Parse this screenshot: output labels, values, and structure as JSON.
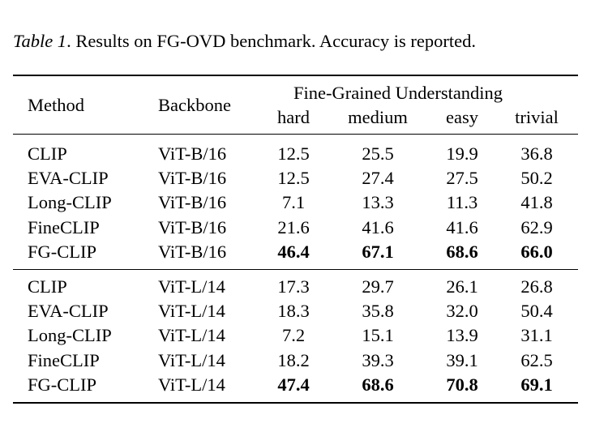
{
  "caption": {
    "label": "Table 1",
    "text": ". Results on FG-OVD benchmark. Accuracy is reported."
  },
  "table": {
    "headers": {
      "method": "Method",
      "backbone": "Backbone",
      "group": "Fine-Grained Understanding",
      "columns": [
        "hard",
        "medium",
        "easy",
        "trivial"
      ]
    },
    "groups": [
      {
        "rows": [
          {
            "method": "CLIP",
            "backbone": "ViT-B/16",
            "values": [
              "12.5",
              "25.5",
              "19.9",
              "36.8"
            ],
            "bold": false
          },
          {
            "method": "EVA-CLIP",
            "backbone": "ViT-B/16",
            "values": [
              "12.5",
              "27.4",
              "27.5",
              "50.2"
            ],
            "bold": false
          },
          {
            "method": "Long-CLIP",
            "backbone": "ViT-B/16",
            "values": [
              "7.1",
              "13.3",
              "11.3",
              "41.8"
            ],
            "bold": false
          },
          {
            "method": "FineCLIP",
            "backbone": "ViT-B/16",
            "values": [
              "21.6",
              "41.6",
              "41.6",
              "62.9"
            ],
            "bold": false
          },
          {
            "method": "FG-CLIP",
            "backbone": "ViT-B/16",
            "values": [
              "46.4",
              "67.1",
              "68.6",
              "66.0"
            ],
            "bold": true
          }
        ]
      },
      {
        "rows": [
          {
            "method": "CLIP",
            "backbone": "ViT-L/14",
            "values": [
              "17.3",
              "29.7",
              "26.1",
              "26.8"
            ],
            "bold": false
          },
          {
            "method": "EVA-CLIP",
            "backbone": "ViT-L/14",
            "values": [
              "18.3",
              "35.8",
              "32.0",
              "50.4"
            ],
            "bold": false
          },
          {
            "method": "Long-CLIP",
            "backbone": "ViT-L/14",
            "values": [
              "7.2",
              "15.1",
              "13.9",
              "31.1"
            ],
            "bold": false
          },
          {
            "method": "FineCLIP",
            "backbone": "ViT-L/14",
            "values": [
              "18.2",
              "39.3",
              "39.1",
              "62.5"
            ],
            "bold": false
          },
          {
            "method": "FG-CLIP",
            "backbone": "ViT-L/14",
            "values": [
              "47.4",
              "68.6",
              "70.8",
              "69.1"
            ],
            "bold": true
          }
        ]
      }
    ]
  }
}
